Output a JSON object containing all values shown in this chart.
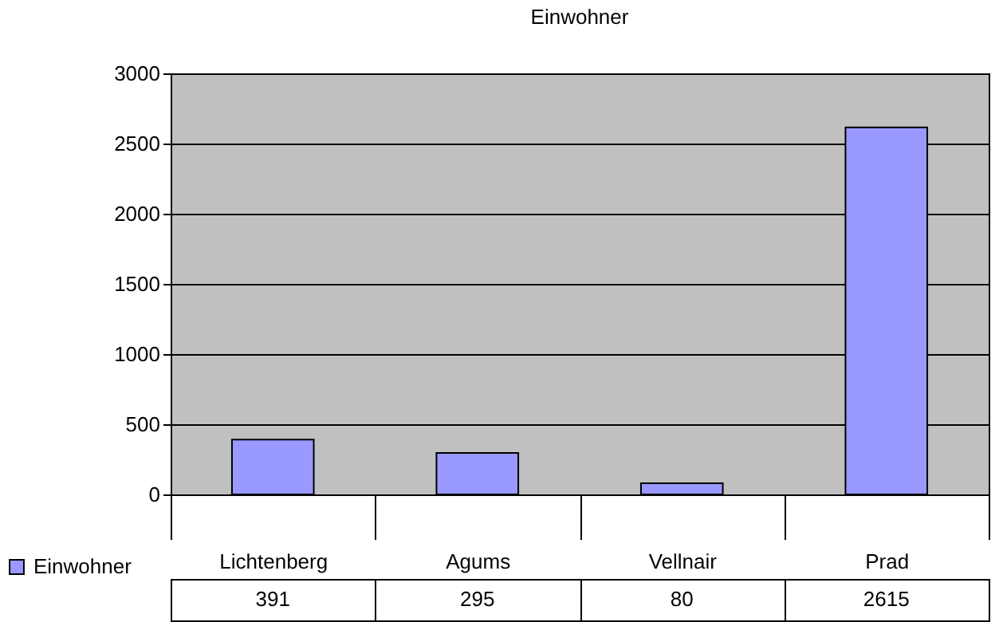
{
  "chart_data": {
    "type": "bar",
    "title": "Einwohner",
    "categories": [
      "Lichtenberg",
      "Agums",
      "Vellnair",
      "Prad"
    ],
    "series": [
      {
        "name": "Einwohner",
        "color": "#9999ff",
        "values": [
          391,
          295,
          80,
          2615
        ]
      }
    ],
    "ylim": [
      0,
      3000
    ],
    "yticks": [
      0,
      500,
      1000,
      1500,
      2000,
      2500,
      3000
    ],
    "grid": "y",
    "legend": "bottom left",
    "data_labels": true
  }
}
